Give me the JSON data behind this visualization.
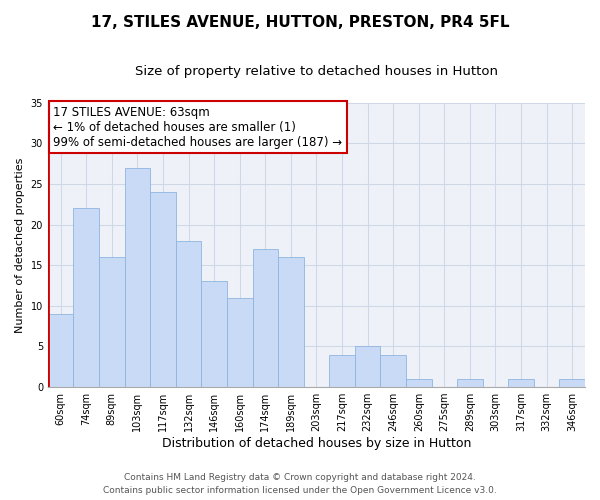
{
  "title": "17, STILES AVENUE, HUTTON, PRESTON, PR4 5FL",
  "subtitle": "Size of property relative to detached houses in Hutton",
  "xlabel": "Distribution of detached houses by size in Hutton",
  "ylabel": "Number of detached properties",
  "bar_labels": [
    "60sqm",
    "74sqm",
    "89sqm",
    "103sqm",
    "117sqm",
    "132sqm",
    "146sqm",
    "160sqm",
    "174sqm",
    "189sqm",
    "203sqm",
    "217sqm",
    "232sqm",
    "246sqm",
    "260sqm",
    "275sqm",
    "289sqm",
    "303sqm",
    "317sqm",
    "332sqm",
    "346sqm"
  ],
  "bar_values": [
    9,
    22,
    16,
    27,
    24,
    18,
    13,
    11,
    17,
    16,
    0,
    4,
    5,
    4,
    1,
    0,
    1,
    0,
    1,
    0,
    1
  ],
  "bar_color": "#c8daf5",
  "bar_edge_color": "#8fb4e0",
  "highlight_edge_color": "#cc0000",
  "annotation_text": "17 STILES AVENUE: 63sqm\n← 1% of detached houses are smaller (1)\n99% of semi-detached houses are larger (187) →",
  "annotation_box_edge": "#cc0000",
  "ylim": [
    0,
    35
  ],
  "yticks": [
    0,
    5,
    10,
    15,
    20,
    25,
    30,
    35
  ],
  "footer_line1": "Contains HM Land Registry data © Crown copyright and database right 2024.",
  "footer_line2": "Contains public sector information licensed under the Open Government Licence v3.0.",
  "title_fontsize": 11,
  "subtitle_fontsize": 9.5,
  "xlabel_fontsize": 9,
  "ylabel_fontsize": 8,
  "tick_fontsize": 7,
  "annotation_fontsize": 8.5,
  "footer_fontsize": 6.5,
  "grid_color": "#d0d8e8",
  "bg_color": "#eef2f8"
}
